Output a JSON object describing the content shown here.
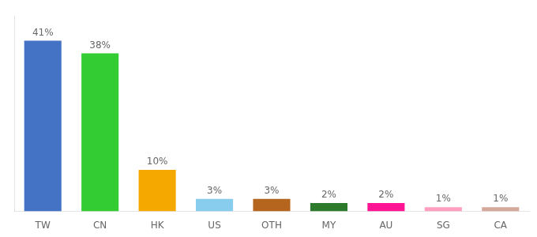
{
  "chart_data": {
    "type": "bar",
    "categories": [
      "TW",
      "CN",
      "HK",
      "US",
      "OTH",
      "MY",
      "AU",
      "SG",
      "CA"
    ],
    "values": [
      41,
      38,
      10,
      3,
      3,
      2,
      2,
      1,
      1
    ],
    "value_labels": [
      "41%",
      "38%",
      "10%",
      "3%",
      "3%",
      "2%",
      "2%",
      "1%",
      "1%"
    ],
    "colors": [
      "#4472c4",
      "#33cc33",
      "#f5a800",
      "#88ccee",
      "#b5651d",
      "#2d7a2d",
      "#ff1493",
      "#ff9ec0",
      "#d4a89a"
    ],
    "ylim": [
      0,
      47
    ],
    "data_labels": true,
    "grid": false,
    "tick_labels": "x"
  }
}
